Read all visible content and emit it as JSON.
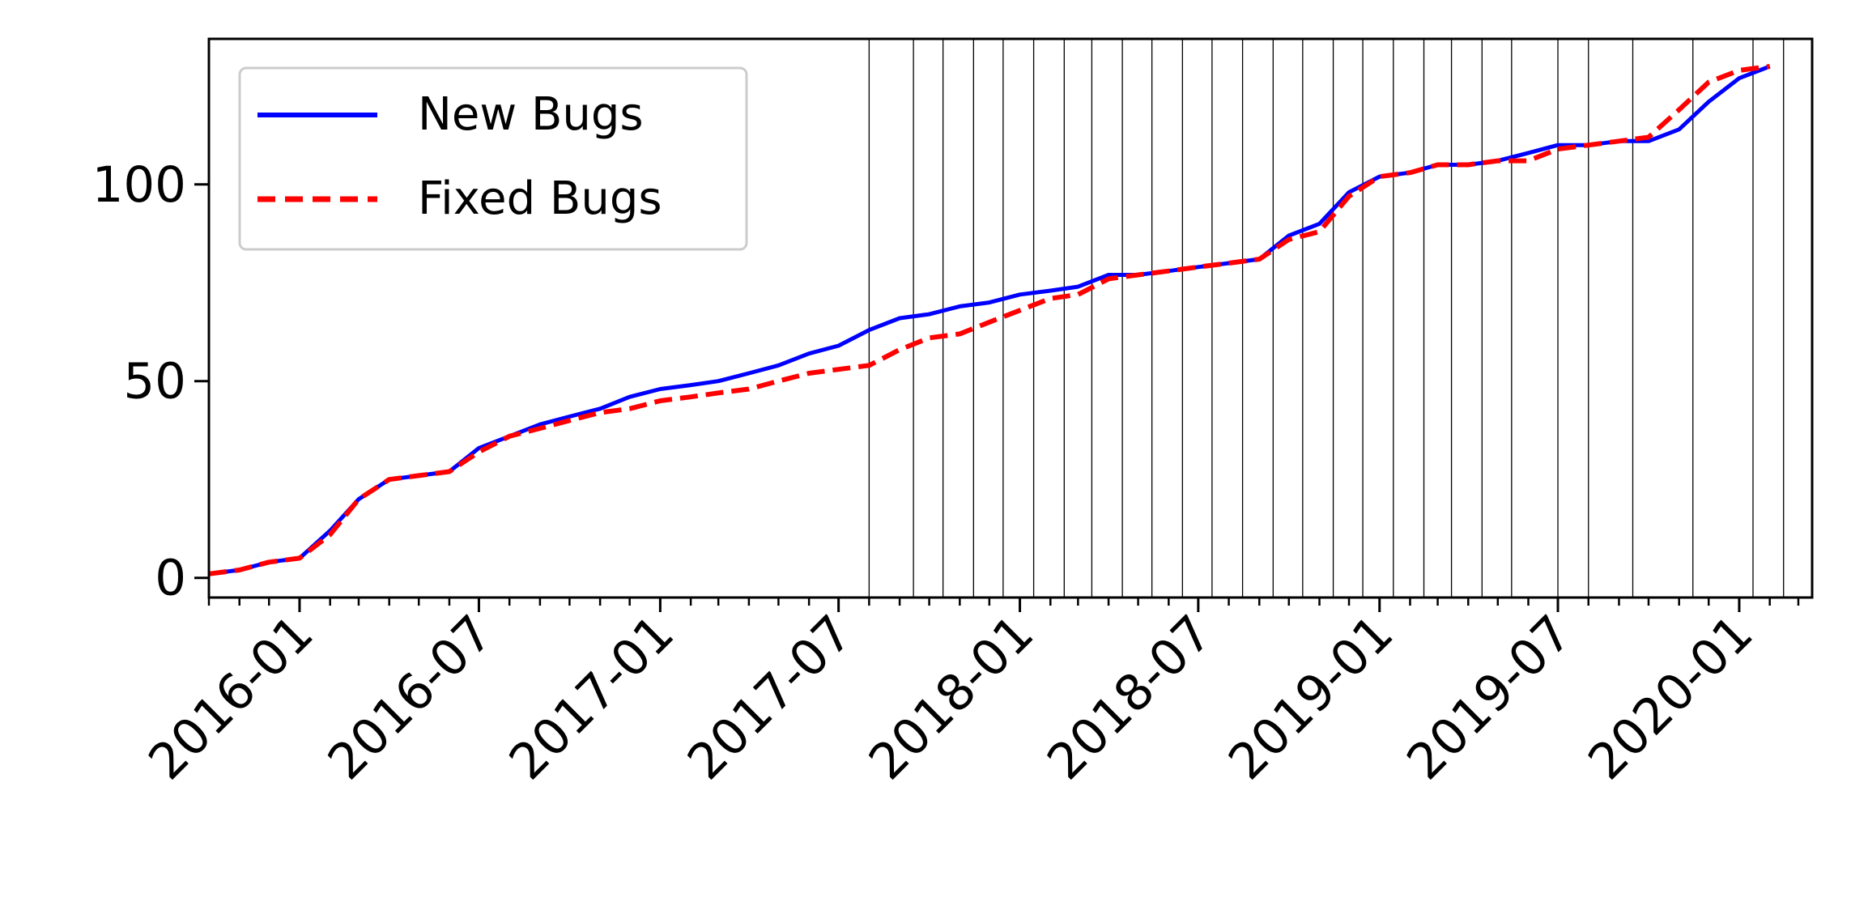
{
  "chart_data": {
    "type": "line",
    "title": "",
    "xlabel": "",
    "ylabel": "",
    "xlim": [
      "2015-10-01",
      "2020-03-15"
    ],
    "ylim": [
      -5,
      137
    ],
    "x_ticks": [
      "2016-01",
      "2016-07",
      "2017-01",
      "2017-07",
      "2018-01",
      "2018-07",
      "2019-01",
      "2019-07",
      "2020-01"
    ],
    "y_ticks": [
      0,
      50,
      100
    ],
    "legend": {
      "position": "top-left",
      "entries": [
        "New Bugs",
        "Fixed Bugs"
      ]
    },
    "colors": {
      "new_bugs": "#0000ff",
      "fixed_bugs": "#ff0000",
      "release_lines": "#000000"
    },
    "release_markers": [
      "2017-08-01",
      "2017-09-15",
      "2017-10-15",
      "2017-11-15",
      "2017-12-15",
      "2018-01-15",
      "2018-02-15",
      "2018-03-15",
      "2018-04-15",
      "2018-05-15",
      "2018-06-15",
      "2018-07-15",
      "2018-08-15",
      "2018-09-15",
      "2018-10-15",
      "2018-11-15",
      "2018-12-15",
      "2019-01-15",
      "2019-02-15",
      "2019-03-15",
      "2019-04-15",
      "2019-05-15",
      "2019-07-01",
      "2019-08-01",
      "2019-09-15",
      "2019-11-15",
      "2020-01-15",
      "2020-02-15"
    ],
    "series": [
      {
        "name": "New Bugs",
        "style": "solid",
        "points": [
          [
            "2015-10-01",
            1
          ],
          [
            "2015-11-01",
            2
          ],
          [
            "2015-12-01",
            4
          ],
          [
            "2016-01-01",
            5
          ],
          [
            "2016-02-01",
            12
          ],
          [
            "2016-03-01",
            20
          ],
          [
            "2016-04-01",
            25
          ],
          [
            "2016-05-01",
            26
          ],
          [
            "2016-06-01",
            27
          ],
          [
            "2016-07-01",
            33
          ],
          [
            "2016-08-01",
            36
          ],
          [
            "2016-09-01",
            39
          ],
          [
            "2016-10-01",
            41
          ],
          [
            "2016-11-01",
            43
          ],
          [
            "2016-12-01",
            46
          ],
          [
            "2017-01-01",
            48
          ],
          [
            "2017-02-01",
            49
          ],
          [
            "2017-03-01",
            50
          ],
          [
            "2017-04-01",
            52
          ],
          [
            "2017-05-01",
            54
          ],
          [
            "2017-06-01",
            57
          ],
          [
            "2017-07-01",
            59
          ],
          [
            "2017-08-01",
            63
          ],
          [
            "2017-09-01",
            66
          ],
          [
            "2017-10-01",
            67
          ],
          [
            "2017-11-01",
            69
          ],
          [
            "2017-12-01",
            70
          ],
          [
            "2018-01-01",
            72
          ],
          [
            "2018-02-01",
            73
          ],
          [
            "2018-03-01",
            74
          ],
          [
            "2018-04-01",
            77
          ],
          [
            "2018-05-01",
            77
          ],
          [
            "2018-06-01",
            78
          ],
          [
            "2018-07-01",
            79
          ],
          [
            "2018-08-01",
            80
          ],
          [
            "2018-09-01",
            81
          ],
          [
            "2018-10-01",
            87
          ],
          [
            "2018-11-01",
            90
          ],
          [
            "2018-12-01",
            98
          ],
          [
            "2019-01-01",
            102
          ],
          [
            "2019-02-01",
            103
          ],
          [
            "2019-03-01",
            105
          ],
          [
            "2019-04-01",
            105
          ],
          [
            "2019-05-01",
            106
          ],
          [
            "2019-06-01",
            108
          ],
          [
            "2019-07-01",
            110
          ],
          [
            "2019-08-01",
            110
          ],
          [
            "2019-09-01",
            111
          ],
          [
            "2019-10-01",
            111
          ],
          [
            "2019-11-01",
            114
          ],
          [
            "2019-12-01",
            121
          ],
          [
            "2020-01-01",
            127
          ],
          [
            "2020-02-01",
            130
          ]
        ]
      },
      {
        "name": "Fixed Bugs",
        "style": "dashed",
        "points": [
          [
            "2015-10-01",
            1
          ],
          [
            "2015-11-01",
            2
          ],
          [
            "2015-12-01",
            4
          ],
          [
            "2016-01-01",
            5
          ],
          [
            "2016-02-01",
            11
          ],
          [
            "2016-03-01",
            20
          ],
          [
            "2016-04-01",
            25
          ],
          [
            "2016-05-01",
            26
          ],
          [
            "2016-06-01",
            27
          ],
          [
            "2016-07-01",
            32
          ],
          [
            "2016-08-01",
            36
          ],
          [
            "2016-09-01",
            38
          ],
          [
            "2016-10-01",
            40
          ],
          [
            "2016-11-01",
            42
          ],
          [
            "2016-12-01",
            43
          ],
          [
            "2017-01-01",
            45
          ],
          [
            "2017-02-01",
            46
          ],
          [
            "2017-03-01",
            47
          ],
          [
            "2017-04-01",
            48
          ],
          [
            "2017-05-01",
            50
          ],
          [
            "2017-06-01",
            52
          ],
          [
            "2017-07-01",
            53
          ],
          [
            "2017-08-01",
            54
          ],
          [
            "2017-09-01",
            58
          ],
          [
            "2017-10-01",
            61
          ],
          [
            "2017-11-01",
            62
          ],
          [
            "2017-12-01",
            65
          ],
          [
            "2018-01-01",
            68
          ],
          [
            "2018-02-01",
            71
          ],
          [
            "2018-03-01",
            72
          ],
          [
            "2018-04-01",
            76
          ],
          [
            "2018-05-01",
            77
          ],
          [
            "2018-06-01",
            78
          ],
          [
            "2018-07-01",
            79
          ],
          [
            "2018-08-01",
            80
          ],
          [
            "2018-09-01",
            81
          ],
          [
            "2018-10-01",
            86
          ],
          [
            "2018-11-01",
            88
          ],
          [
            "2018-12-01",
            97
          ],
          [
            "2019-01-01",
            102
          ],
          [
            "2019-02-01",
            103
          ],
          [
            "2019-03-01",
            105
          ],
          [
            "2019-04-01",
            105
          ],
          [
            "2019-05-01",
            106
          ],
          [
            "2019-06-01",
            106
          ],
          [
            "2019-07-01",
            109
          ],
          [
            "2019-08-01",
            110
          ],
          [
            "2019-09-01",
            111
          ],
          [
            "2019-10-01",
            112
          ],
          [
            "2019-11-01",
            119
          ],
          [
            "2019-12-01",
            126
          ],
          [
            "2020-01-01",
            129
          ],
          [
            "2020-02-01",
            130
          ]
        ]
      }
    ]
  }
}
